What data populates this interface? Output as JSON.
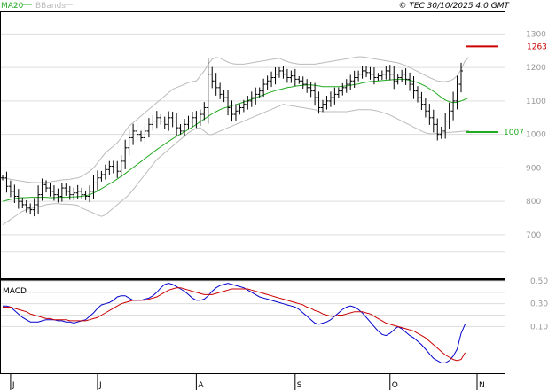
{
  "header": {
    "legend_ma": "MA20",
    "legend_bb": "BBands",
    "copyright": "© TEC 30/10/2025 4:0 GMT"
  },
  "colors": {
    "ma": "#22aa22",
    "bbands": "#bbbbbb",
    "bars": "#000000",
    "grid": "#dddddd",
    "macd": "#0000cc",
    "signal": "#cc0000",
    "resistance": "#cc0000",
    "support": "#22aa22",
    "axis_text": "#999999"
  },
  "chart_data": [
    {
      "type": "ohlc",
      "ylim": [
        570,
        1370
      ],
      "y_ticks": [
        "1300",
        "1200",
        "1100",
        "1000",
        "900",
        "800",
        "700"
      ],
      "x_ticks": [
        "J",
        "J",
        "A",
        "S",
        "O",
        "N"
      ],
      "levels": [
        {
          "name": "resistance",
          "value": 1263,
          "label": "1263"
        },
        {
          "name": "support",
          "value": 1007,
          "label": "1007"
        }
      ],
      "close": [
        870,
        845,
        830,
        815,
        800,
        790,
        780,
        775,
        790,
        820,
        850,
        840,
        830,
        820,
        815,
        840,
        830,
        820,
        825,
        830,
        820,
        815,
        830,
        855,
        870,
        880,
        895,
        905,
        900,
        890,
        920,
        960,
        990,
        1010,
        1000,
        990,
        1010,
        1030,
        1040,
        1050,
        1040,
        1030,
        1050,
        1040,
        1020,
        1010,
        1030,
        1040,
        1050,
        1040,
        1060,
        1080,
        1180,
        1160,
        1140,
        1120,
        1110,
        1080,
        1060,
        1070,
        1080,
        1090,
        1100,
        1110,
        1120,
        1130,
        1150,
        1160,
        1170,
        1180,
        1190,
        1180,
        1170,
        1175,
        1165,
        1160,
        1150,
        1140,
        1130,
        1110,
        1080,
        1090,
        1100,
        1110,
        1120,
        1130,
        1140,
        1150,
        1160,
        1170,
        1180,
        1190,
        1185,
        1180,
        1170,
        1175,
        1180,
        1190,
        1180,
        1160,
        1170,
        1180,
        1165,
        1150,
        1130,
        1110,
        1090,
        1070,
        1050,
        1030,
        1000,
        1010,
        1040,
        1070,
        1100,
        1150,
        1190
      ],
      "ma20": [
        800,
        803,
        806,
        808,
        810,
        811,
        811,
        812,
        812,
        812,
        812,
        812,
        811,
        811,
        812,
        812,
        812,
        813,
        813,
        814,
        815,
        817,
        820,
        825,
        831,
        838,
        845,
        852,
        859,
        867,
        875,
        883,
        892,
        901,
        910,
        919,
        928,
        937,
        946,
        955,
        963,
        971,
        979,
        987,
        994,
        1001,
        1008,
        1015,
        1022,
        1030,
        1038,
        1046,
        1054,
        1062,
        1068,
        1074,
        1079,
        1082,
        1086,
        1089,
        1093,
        1097,
        1101,
        1105,
        1109,
        1114,
        1118,
        1123,
        1127,
        1131,
        1134,
        1137,
        1140,
        1142,
        1144,
        1146,
        1147,
        1148,
        1148,
        1147,
        1145,
        1143,
        1143,
        1143,
        1143,
        1143,
        1144,
        1145,
        1147,
        1149,
        1151,
        1154,
        1156,
        1158,
        1159,
        1160,
        1161,
        1162,
        1163,
        1164,
        1165,
        1165,
        1164,
        1162,
        1159,
        1155,
        1150,
        1144,
        1137,
        1129,
        1120,
        1111,
        1103,
        1098,
        1095,
        1096,
        1100,
        1105,
        1110
      ],
      "bb_upper": [
        870,
        868,
        866,
        864,
        862,
        860,
        858,
        857,
        856,
        856,
        856,
        857,
        858,
        860,
        862,
        864,
        865,
        866,
        868,
        870,
        875,
        882,
        890,
        900,
        915,
        930,
        945,
        955,
        965,
        975,
        990,
        1010,
        1025,
        1035,
        1045,
        1055,
        1065,
        1075,
        1085,
        1095,
        1105,
        1115,
        1125,
        1135,
        1140,
        1145,
        1150,
        1155,
        1158,
        1160,
        1175,
        1190,
        1210,
        1225,
        1230,
        1228,
        1222,
        1216,
        1212,
        1210,
        1210,
        1210,
        1212,
        1214,
        1216,
        1218,
        1220,
        1222,
        1224,
        1226,
        1228,
        1222,
        1218,
        1214,
        1212,
        1210,
        1210,
        1210,
        1210,
        1210,
        1212,
        1214,
        1216,
        1218,
        1220,
        1222,
        1224,
        1226,
        1228,
        1230,
        1232,
        1232,
        1230,
        1228,
        1226,
        1224,
        1222,
        1220,
        1218,
        1216,
        1214,
        1210,
        1206,
        1200,
        1194,
        1188,
        1182,
        1176,
        1170,
        1165,
        1160,
        1158,
        1158,
        1160,
        1165,
        1175,
        1195,
        1220,
        1230
      ],
      "bb_lower": [
        730,
        738,
        746,
        754,
        762,
        770,
        775,
        778,
        781,
        784,
        787,
        790,
        792,
        793,
        793,
        792,
        792,
        791,
        790,
        788,
        780,
        775,
        770,
        765,
        760,
        755,
        760,
        770,
        780,
        790,
        800,
        810,
        820,
        835,
        850,
        865,
        880,
        895,
        910,
        925,
        935,
        945,
        955,
        965,
        975,
        985,
        995,
        1005,
        1012,
        1018,
        1020,
        1010,
        1000,
        1000,
        1005,
        1010,
        1015,
        1020,
        1025,
        1030,
        1035,
        1040,
        1045,
        1050,
        1055,
        1060,
        1065,
        1070,
        1075,
        1080,
        1085,
        1090,
        1088,
        1086,
        1084,
        1082,
        1080,
        1078,
        1076,
        1074,
        1070,
        1068,
        1068,
        1068,
        1068,
        1068,
        1068,
        1068,
        1070,
        1072,
        1074,
        1074,
        1074,
        1074,
        1072,
        1070,
        1066,
        1062,
        1058,
        1052,
        1046,
        1040,
        1034,
        1028,
        1022,
        1016,
        1010,
        1005,
        1002,
        1002,
        1003,
        1004,
        1005,
        1006,
        1007,
        1008,
        1009,
        1010,
        1011
      ]
    },
    {
      "type": "line",
      "title": "MACD",
      "y_ticks": [
        "0.50",
        "0.30",
        "0.10"
      ],
      "ylim": [
        -0.31,
        0.5
      ],
      "series": [
        {
          "key": "macd",
          "values": [
            0.28,
            0.28,
            0.27,
            0.24,
            0.21,
            0.18,
            0.16,
            0.14,
            0.14,
            0.14,
            0.15,
            0.16,
            0.16,
            0.16,
            0.15,
            0.15,
            0.14,
            0.14,
            0.13,
            0.14,
            0.15,
            0.16,
            0.19,
            0.22,
            0.26,
            0.29,
            0.3,
            0.31,
            0.33,
            0.36,
            0.37,
            0.37,
            0.35,
            0.33,
            0.33,
            0.33,
            0.34,
            0.35,
            0.37,
            0.4,
            0.44,
            0.47,
            0.48,
            0.47,
            0.45,
            0.43,
            0.41,
            0.38,
            0.35,
            0.33,
            0.33,
            0.34,
            0.37,
            0.41,
            0.44,
            0.46,
            0.47,
            0.48,
            0.47,
            0.46,
            0.45,
            0.44,
            0.42,
            0.4,
            0.38,
            0.36,
            0.35,
            0.34,
            0.33,
            0.32,
            0.31,
            0.3,
            0.29,
            0.28,
            0.27,
            0.25,
            0.22,
            0.19,
            0.16,
            0.13,
            0.12,
            0.13,
            0.14,
            0.16,
            0.19,
            0.22,
            0.25,
            0.27,
            0.28,
            0.27,
            0.25,
            0.22,
            0.18,
            0.14,
            0.1,
            0.06,
            0.03,
            0.02,
            0.04,
            0.07,
            0.1,
            0.08,
            0.05,
            0.02,
            0.0,
            -0.03,
            -0.06,
            -0.1,
            -0.14,
            -0.18,
            -0.2,
            -0.22,
            -0.22,
            -0.2,
            -0.16,
            -0.1,
            0.04,
            0.12
          ]
        },
        {
          "key": "signal",
          "values": [
            0.27,
            0.27,
            0.27,
            0.26,
            0.25,
            0.24,
            0.23,
            0.21,
            0.2,
            0.19,
            0.18,
            0.17,
            0.17,
            0.16,
            0.16,
            0.16,
            0.16,
            0.15,
            0.15,
            0.15,
            0.15,
            0.15,
            0.16,
            0.17,
            0.18,
            0.2,
            0.22,
            0.24,
            0.26,
            0.28,
            0.3,
            0.31,
            0.32,
            0.33,
            0.33,
            0.33,
            0.33,
            0.34,
            0.35,
            0.36,
            0.38,
            0.4,
            0.42,
            0.43,
            0.44,
            0.44,
            0.43,
            0.42,
            0.41,
            0.4,
            0.39,
            0.38,
            0.38,
            0.38,
            0.39,
            0.4,
            0.41,
            0.42,
            0.43,
            0.43,
            0.43,
            0.43,
            0.43,
            0.42,
            0.41,
            0.4,
            0.39,
            0.38,
            0.37,
            0.36,
            0.35,
            0.34,
            0.33,
            0.32,
            0.31,
            0.3,
            0.29,
            0.27,
            0.26,
            0.24,
            0.23,
            0.21,
            0.2,
            0.19,
            0.19,
            0.2,
            0.2,
            0.21,
            0.22,
            0.23,
            0.23,
            0.23,
            0.22,
            0.21,
            0.19,
            0.17,
            0.15,
            0.13,
            0.12,
            0.11,
            0.1,
            0.09,
            0.08,
            0.07,
            0.06,
            0.04,
            0.02,
            0.0,
            -0.03,
            -0.06,
            -0.09,
            -0.12,
            -0.15,
            -0.17,
            -0.19,
            -0.2,
            -0.19,
            -0.13
          ]
        }
      ]
    }
  ]
}
